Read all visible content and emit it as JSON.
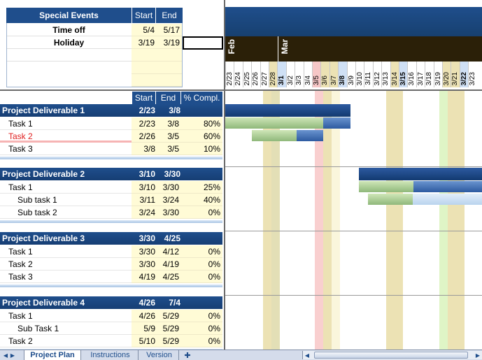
{
  "special_events": {
    "title": "Special Events",
    "start_header": "Start",
    "end_header": "End",
    "rows": [
      {
        "name": "Time off",
        "start": "5/4",
        "end": "5/17"
      },
      {
        "name": "Holiday",
        "start": "3/19",
        "end": "3/19"
      }
    ]
  },
  "project_table": {
    "headers": {
      "start": "Start",
      "end": "End",
      "pct": "% Compl."
    },
    "deliverables": [
      {
        "name": "Project Deliverable 1",
        "start": "2/23",
        "end": "3/8",
        "tasks": [
          {
            "name": "Task 1",
            "start": "2/23",
            "end": "3/8",
            "pct": "80%"
          },
          {
            "name": "Task 2",
            "start": "2/26",
            "end": "3/5",
            "pct": "60%"
          },
          {
            "name": "Task 3",
            "start": "3/8",
            "end": "3/5",
            "pct": "10%"
          }
        ]
      },
      {
        "name": "Project Deliverable 2",
        "start": "3/10",
        "end": "3/30",
        "tasks": [
          {
            "name": "Task 1",
            "start": "3/10",
            "end": "3/30",
            "pct": "25%"
          },
          {
            "name": "Sub task 1",
            "start": "3/11",
            "end": "3/24",
            "pct": "40%"
          },
          {
            "name": "Sub task 2",
            "start": "3/24",
            "end": "3/30",
            "pct": "0%"
          }
        ]
      },
      {
        "name": "Project Deliverable 3",
        "start": "3/30",
        "end": "4/25",
        "tasks": [
          {
            "name": "Task 1",
            "start": "3/30",
            "end": "4/12",
            "pct": "0%"
          },
          {
            "name": "Task 2",
            "start": "3/30",
            "end": "4/19",
            "pct": "0%"
          },
          {
            "name": "Task 3",
            "start": "4/19",
            "end": "4/25",
            "pct": "0%"
          }
        ]
      },
      {
        "name": "Project Deliverable 4",
        "start": "4/26",
        "end": "7/4",
        "tasks": [
          {
            "name": "Task 1",
            "start": "4/26",
            "end": "5/29",
            "pct": "0%"
          },
          {
            "name": "Sub Task 1",
            "start": "5/9",
            "end": "5/29",
            "pct": "0%"
          },
          {
            "name": "Task 2",
            "start": "5/10",
            "end": "5/29",
            "pct": "0%"
          }
        ]
      }
    ]
  },
  "gantt": {
    "months": [
      "Feb",
      "Mar"
    ],
    "days": [
      "2/23",
      "2/24",
      "2/25",
      "2/26",
      "2/27",
      "2/28",
      "3/1",
      "3/2",
      "3/3",
      "3/4",
      "3/5",
      "3/6",
      "3/7",
      "3/8",
      "3/9",
      "3/10",
      "3/11",
      "3/12",
      "3/13",
      "3/14",
      "3/15",
      "3/16",
      "3/17",
      "3/18",
      "3/19",
      "3/20",
      "3/21",
      "3/22",
      "3/23"
    ]
  },
  "tabs": {
    "items": [
      "Project Plan",
      "Instructions",
      "Version"
    ],
    "active": "Project Plan"
  },
  "colors": {
    "header_blue": "#1f4e8c",
    "input_yellow": "#fffbd6",
    "today_red": "#f9cfcf",
    "weekend_tan": "#ece2b4",
    "holiday_green": "#dff5c6"
  }
}
